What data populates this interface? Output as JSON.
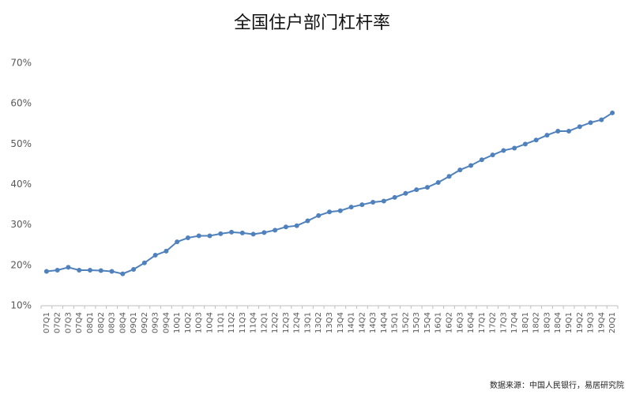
{
  "chart_data": {
    "type": "line",
    "title": "全国住户部门杠杆率",
    "source": "数据来源：中国人民银行，易居研究院",
    "categories": [
      "07Q1",
      "07Q2",
      "07Q3",
      "07Q4",
      "08Q1",
      "08Q2",
      "08Q3",
      "08Q4",
      "09Q1",
      "09Q2",
      "09Q3",
      "09Q4",
      "10Q1",
      "10Q2",
      "10Q3",
      "10Q4",
      "11Q1",
      "11Q2",
      "11Q3",
      "11Q4",
      "12Q1",
      "12Q2",
      "12Q3",
      "12Q4",
      "13Q1",
      "13Q2",
      "13Q3",
      "13Q4",
      "14Q1",
      "14Q2",
      "14Q3",
      "14Q4",
      "15Q1",
      "15Q2",
      "15Q3",
      "15Q4",
      "16Q1",
      "16Q2",
      "16Q3",
      "16Q4",
      "17Q1",
      "17Q2",
      "17Q3",
      "17Q4",
      "18Q1",
      "18Q2",
      "18Q3",
      "18Q4",
      "19Q1",
      "19Q2",
      "19Q3",
      "19Q4",
      "20Q1"
    ],
    "values": [
      18.5,
      18.8,
      19.5,
      18.8,
      18.8,
      18.7,
      18.5,
      17.9,
      19.0,
      20.6,
      22.5,
      23.5,
      25.8,
      26.8,
      27.3,
      27.3,
      27.8,
      28.2,
      28.0,
      27.7,
      28.1,
      28.7,
      29.5,
      29.8,
      31.0,
      32.3,
      33.2,
      33.5,
      34.4,
      35.0,
      35.6,
      35.9,
      36.8,
      37.8,
      38.7,
      39.3,
      40.5,
      42.0,
      43.6,
      44.7,
      46.1,
      47.3,
      48.4,
      49.0,
      50.0,
      51.0,
      52.2,
      53.2,
      53.2,
      54.3,
      55.3,
      56.0,
      57.7
    ],
    "color": "#4f81bd",
    "ylim": [
      10,
      70
    ],
    "yticks": [
      {
        "value": 10,
        "label": "10%"
      },
      {
        "value": 20,
        "label": "20%"
      },
      {
        "value": 30,
        "label": "30%"
      },
      {
        "value": 40,
        "label": "40%"
      },
      {
        "value": 50,
        "label": "50%"
      },
      {
        "value": 60,
        "label": "60%"
      },
      {
        "value": 70,
        "label": "70%"
      }
    ],
    "grid": false
  }
}
